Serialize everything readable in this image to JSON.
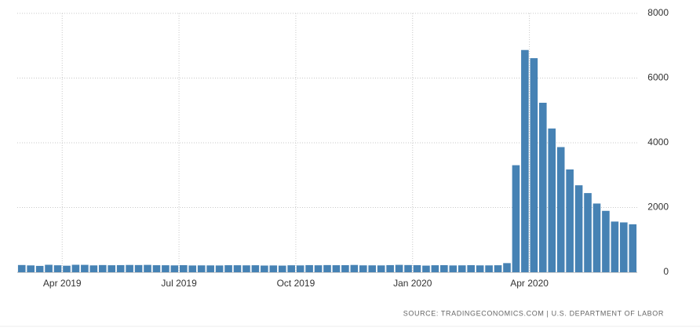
{
  "chart_data": {
    "type": "bar",
    "categories": [
      null,
      null,
      null,
      null,
      "Apr 2019",
      null,
      null,
      null,
      null,
      null,
      null,
      null,
      null,
      null,
      null,
      null,
      null,
      "Jul 2019",
      null,
      null,
      null,
      null,
      null,
      null,
      null,
      null,
      null,
      null,
      null,
      null,
      "Oct 2019",
      null,
      null,
      null,
      null,
      null,
      null,
      null,
      null,
      null,
      null,
      null,
      null,
      "Jan 2020",
      null,
      null,
      null,
      null,
      null,
      null,
      null,
      null,
      null,
      null,
      null,
      null,
      "Apr 2020",
      null,
      null,
      null,
      null,
      null,
      null,
      null,
      null,
      null,
      null,
      null,
      null
    ],
    "values": [
      223,
      211,
      196,
      230,
      215,
      202,
      230,
      228,
      212,
      222,
      216,
      220,
      225,
      222,
      227,
      217,
      216,
      212,
      218,
      209,
      212,
      211,
      209,
      217,
      216,
      213,
      216,
      207,
      210,
      205,
      215,
      211,
      220,
      215,
      221,
      217,
      218,
      225,
      213,
      213,
      211,
      220,
      228,
      222,
      219,
      205,
      216,
      219,
      210,
      213,
      218,
      212,
      212,
      216,
      282,
      3307,
      6867,
      6615,
      5237,
      4442,
      3867,
      3176,
      2687,
      2446,
      2123,
      1897,
      1566,
      1540,
      1482
    ],
    "color": "#4682b4",
    "ylim": [
      0,
      8000
    ],
    "yticks": [
      0,
      2000,
      4000,
      6000,
      8000
    ],
    "grid": true,
    "source": "SOURCE: TRADINGECONOMICS.COM | U.S. DEPARTMENT OF LABOR"
  }
}
